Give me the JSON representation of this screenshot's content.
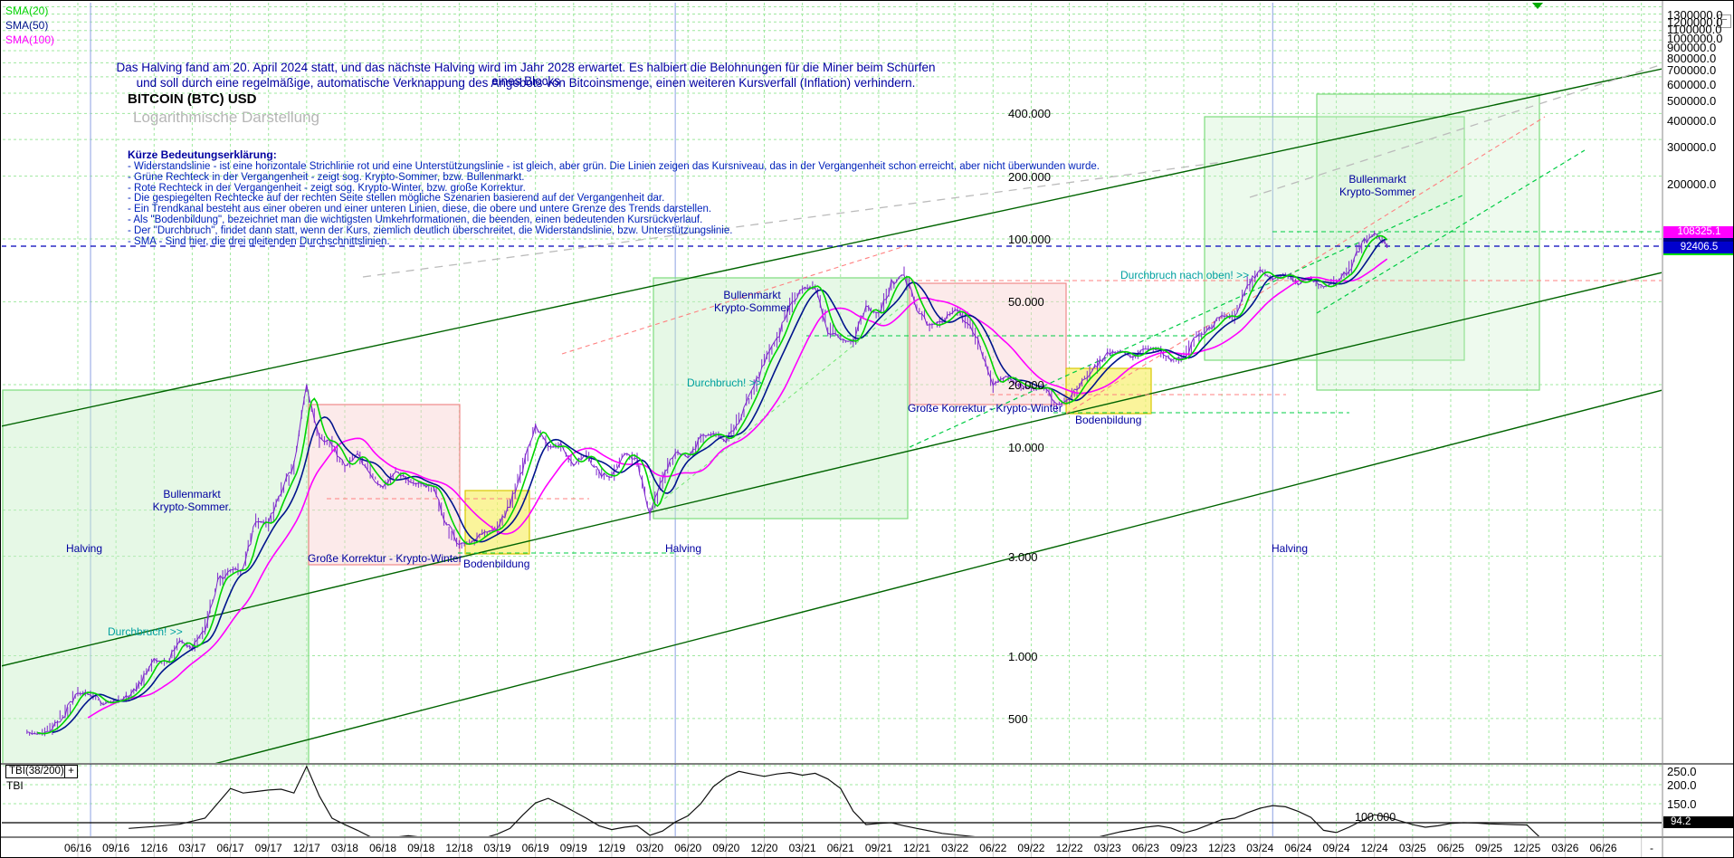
{
  "legend": {
    "sma20": "SMA(20)",
    "sma50": "SMA(50)",
    "sma100": "SMA(100)"
  },
  "header": {
    "info_line1": "Das Halving fand am 20. April 2024 statt, und das nächste Halving wird im Jahr 2028 erwartet. Es halbiert die Belohnungen für die Miner beim Schürfen eines Blocks",
    "info_line2": "und soll durch eine regelmäßige, automatische Verknappung des Angebots von Bitcoinsmenge, einen weiteren Kursverfall (Inflation) verhindern.",
    "title": "BITCOIN (BTC) USD",
    "subtitle": "Logarithmische Darstellung"
  },
  "explanation": {
    "heading": "Kürze Bedeutungserklärung:",
    "bullets": [
      "- Widerstandslinie - ist eine horizontale Strichlinie rot und eine Unterstützungslinie - ist gleich, aber grün. Die Linien zeigen das Kursniveau, das in der Vergangenheit schon erreicht, aber nicht überwunden wurde.",
      "- Grüne Rechteck in der Vergangenheit - zeigt sog. Krypto-Sommer, bzw. Bullenmarkt.",
      "- Rote Rechteck in der Vergangenheit - zeigt sog. Krypto-Winter, bzw. große Korrektur.",
      "- Die gespiegelten Rechtecke auf der rechten Seite stellen mögliche Szenarien basierend auf der Vergangenheit dar.",
      "- Ein Trendkanal besteht aus einer oberen und einer unteren Linien, diese, die obere und untere Grenze des Trends darstellen.",
      "- Als \"Bodenbildung\", bezeichnet man die wichtigsten Umkehrformationen, die beenden, einen bedeutenden Kursrückverlauf.",
      "- Der \"Durchbruch\", findet dann statt, wenn der Kurs, ziemlich deutlich überschreitet, die Widerstandslinie, bzw. Unterstützungslinie.",
      "- SMA - Sind hier, die drei gleitenden Durchschnittslinien."
    ]
  },
  "annotations": {
    "bull_left": "Bullenmarkt\nKrypto-Sommer.",
    "bull_mid": "Bullenmarkt\nKrypto-Sommer",
    "bull_right": "Bullenmarkt\nKrypto-Sommer",
    "halving": "Halving",
    "korrektur": "Große Korrektur - Krypto-Winter",
    "boden": "Bodenbildung",
    "durchbruch": "Durchbruch! >>",
    "durchbruch_oben": "Durchbruch nach oben! >>"
  },
  "tbi": {
    "box_label": "TBI(38/200)",
    "label": "TBI",
    "level_label": "100.000",
    "marker": "94.2"
  },
  "icons": {
    "collapse_glyph": "−",
    "plus_glyph": "+"
  },
  "colors": {
    "sma20": "#00d400",
    "sma50": "#00148c",
    "sma100": "#ff00ff",
    "candle": "#7d26cd",
    "grid": "#9fe89f",
    "bull_box_stroke": "#7ddd7d",
    "bull_box_fill": "#c8f0c8",
    "bear_box_stroke": "#f08a8a",
    "bear_box_fill": "#f8d0d0",
    "bottom_box_stroke": "#d8c800",
    "bottom_box_fill": "#f8f070",
    "trend": "#006400",
    "mirror_gray": "#bbbbbb",
    "resistance": "#ff8080",
    "support": "#00cc44",
    "halving_line": "#9fb0e8",
    "current_price_line": "#0000bb",
    "marker_magenta_bg": "#ff00ff",
    "marker_blue_bg": "#0000cd",
    "tbi_line": "#111111"
  },
  "chart_data": {
    "type": "line",
    "title": "BITCOIN (BTC) USD",
    "yscale": "log",
    "ylabel": "USD",
    "x_range": [
      "06/16",
      "06/26"
    ],
    "y_range_usd": [
      400,
      1400000
    ],
    "x_end_dash": "-",
    "x_ticks": [
      "06/16",
      "09/16",
      "12/16",
      "03/17",
      "06/17",
      "09/17",
      "12/17",
      "03/18",
      "06/18",
      "09/18",
      "12/18",
      "03/19",
      "06/19",
      "09/19",
      "12/19",
      "03/20",
      "06/20",
      "09/20",
      "12/20",
      "03/21",
      "06/21",
      "09/21",
      "12/21",
      "03/22",
      "06/22",
      "09/22",
      "12/22",
      "03/23",
      "06/23",
      "09/23",
      "12/23",
      "03/24",
      "06/24",
      "09/24",
      "12/24",
      "03/25",
      "06/25",
      "09/25",
      "12/25",
      "03/26",
      "06/26"
    ],
    "y_axis_labels_top": [
      {
        "label": "1300000.0",
        "value": 1300000
      },
      {
        "label": "1200000.0",
        "value": 1200000
      },
      {
        "label": "1100000.0",
        "value": 1100000
      },
      {
        "label": "1000000.0",
        "value": 1000000
      },
      {
        "label": "900000.0",
        "value": 900000
      },
      {
        "label": "800000.0",
        "value": 800000
      },
      {
        "label": "700000.0",
        "value": 700000
      },
      {
        "label": "600000.0",
        "value": 600000
      },
      {
        "label": "500000.0",
        "value": 500000
      },
      {
        "label": "400000.0",
        "value": 400000
      },
      {
        "label": "300000.0",
        "value": 300000
      },
      {
        "label": "200000.0",
        "value": 200000
      }
    ],
    "y_axis_labels_inchart": [
      {
        "label": "400.000",
        "value": 400000
      },
      {
        "label": "200.000",
        "value": 200000
      },
      {
        "label": "100.000",
        "value": 100000
      },
      {
        "label": "50.000",
        "value": 50000
      },
      {
        "label": "20.000",
        "value": 20000
      },
      {
        "label": "10.000",
        "value": 10000
      },
      {
        "label": "3.000",
        "value": 3000
      },
      {
        "label": "1.000",
        "value": 1000
      },
      {
        "label": "500",
        "value": 500
      }
    ],
    "price_markers": {
      "magenta": "108325.1",
      "blue": "92406.5"
    },
    "halving_months": [
      "07/16",
      "05/20",
      "04/24"
    ],
    "btc_monthly": [
      [
        "02/16",
        430
      ],
      [
        "03/16",
        420
      ],
      [
        "04/16",
        450
      ],
      [
        "05/16",
        530
      ],
      [
        "06/16",
        670
      ],
      [
        "07/16",
        660
      ],
      [
        "08/16",
        590
      ],
      [
        "09/16",
        608
      ],
      [
        "10/16",
        640
      ],
      [
        "11/16",
        745
      ],
      [
        "12/16",
        960
      ],
      [
        "01/17",
        920
      ],
      [
        "02/17",
        1180
      ],
      [
        "03/17",
        1080
      ],
      [
        "04/17",
        1350
      ],
      [
        "05/17",
        2300
      ],
      [
        "06/17",
        2550
      ],
      [
        "07/17",
        2600
      ],
      [
        "08/17",
        4400
      ],
      [
        "09/17",
        4300
      ],
      [
        "10/17",
        6100
      ],
      [
        "11/17",
        8200
      ],
      [
        "12/17",
        19500
      ],
      [
        "01/18",
        11000
      ],
      [
        "02/18",
        10500
      ],
      [
        "03/18",
        8000
      ],
      [
        "04/18",
        9300
      ],
      [
        "05/18",
        7500
      ],
      [
        "06/18",
        6400
      ],
      [
        "07/18",
        7700
      ],
      [
        "08/18",
        7000
      ],
      [
        "09/18",
        6600
      ],
      [
        "10/18",
        6400
      ],
      [
        "11/18",
        4300
      ],
      [
        "12/18",
        3400
      ],
      [
        "01/19",
        3500
      ],
      [
        "02/19",
        3900
      ],
      [
        "03/19",
        4100
      ],
      [
        "04/19",
        5300
      ],
      [
        "05/19",
        8000
      ],
      [
        "06/19",
        12500
      ],
      [
        "07/19",
        10000
      ],
      [
        "08/19",
        10200
      ],
      [
        "09/19",
        8300
      ],
      [
        "10/19",
        9300
      ],
      [
        "11/19",
        7500
      ],
      [
        "12/19",
        7200
      ],
      [
        "01/20",
        9400
      ],
      [
        "02/20",
        8600
      ],
      [
        "03/20",
        4800
      ],
      [
        "04/20",
        7000
      ],
      [
        "05/20",
        9500
      ],
      [
        "06/20",
        9100
      ],
      [
        "07/20",
        11000
      ],
      [
        "08/20",
        11700
      ],
      [
        "09/20",
        10800
      ],
      [
        "10/20",
        13500
      ],
      [
        "11/20",
        18000
      ],
      [
        "12/20",
        26000
      ],
      [
        "01/21",
        33000
      ],
      [
        "02/21",
        48000
      ],
      [
        "03/21",
        58000
      ],
      [
        "04/21",
        60000
      ],
      [
        "05/21",
        37000
      ],
      [
        "06/21",
        33000
      ],
      [
        "07/21",
        32000
      ],
      [
        "08/21",
        47000
      ],
      [
        "09/21",
        43000
      ],
      [
        "10/21",
        61000
      ],
      [
        "11/21",
        68000
      ],
      [
        "12/21",
        47000
      ],
      [
        "01/22",
        38000
      ],
      [
        "02/22",
        40000
      ],
      [
        "03/22",
        46000
      ],
      [
        "04/22",
        40000
      ],
      [
        "05/22",
        30000
      ],
      [
        "06/22",
        20000
      ],
      [
        "07/22",
        22000
      ],
      [
        "08/22",
        20000
      ],
      [
        "09/22",
        19000
      ],
      [
        "10/22",
        19500
      ],
      [
        "11/22",
        16000
      ],
      [
        "12/22",
        16800
      ],
      [
        "01/23",
        21000
      ],
      [
        "02/23",
        24000
      ],
      [
        "03/23",
        28000
      ],
      [
        "04/23",
        29000
      ],
      [
        "05/23",
        27000
      ],
      [
        "06/23",
        30000
      ],
      [
        "07/23",
        29500
      ],
      [
        "08/23",
        26000
      ],
      [
        "09/23",
        27000
      ],
      [
        "10/23",
        34000
      ],
      [
        "11/23",
        37000
      ],
      [
        "12/23",
        43000
      ],
      [
        "01/24",
        42000
      ],
      [
        "02/24",
        60000
      ],
      [
        "03/24",
        71000
      ],
      [
        "04/24",
        64000
      ],
      [
        "05/24",
        68000
      ],
      [
        "06/24",
        61000
      ],
      [
        "07/24",
        65000
      ],
      [
        "08/24",
        58000
      ],
      [
        "09/24",
        63000
      ],
      [
        "10/24",
        70000
      ],
      [
        "11/24",
        95000
      ],
      [
        "12/24",
        106000
      ],
      [
        "01/25",
        92400
      ]
    ],
    "tbi_axis_labels": [
      {
        "label": "250.0",
        "value": 250
      },
      {
        "label": "200.0",
        "value": 200
      },
      {
        "label": "150.0",
        "value": 150
      }
    ],
    "tbi_monthly": [
      [
        "10/16",
        85
      ],
      [
        "12/16",
        90
      ],
      [
        "02/17",
        96
      ],
      [
        "04/17",
        112
      ],
      [
        "06/17",
        190
      ],
      [
        "07/17",
        178
      ],
      [
        "08/17",
        182
      ],
      [
        "09/17",
        186
      ],
      [
        "10/17",
        188
      ],
      [
        "11/17",
        178
      ],
      [
        "12/17",
        248
      ],
      [
        "01/18",
        170
      ],
      [
        "02/18",
        112
      ],
      [
        "03/18",
        95
      ],
      [
        "04/18",
        80
      ],
      [
        "05/18",
        63
      ],
      [
        "06/18",
        60
      ],
      [
        "07/18",
        62
      ],
      [
        "08/18",
        66
      ],
      [
        "09/18",
        62
      ],
      [
        "10/18",
        60
      ],
      [
        "11/18",
        55
      ],
      [
        "12/18",
        48
      ],
      [
        "01/19",
        52
      ],
      [
        "02/19",
        60
      ],
      [
        "03/19",
        70
      ],
      [
        "04/19",
        85
      ],
      [
        "05/19",
        120
      ],
      [
        "06/19",
        152
      ],
      [
        "07/19",
        164
      ],
      [
        "08/19",
        148
      ],
      [
        "09/19",
        130
      ],
      [
        "10/19",
        112
      ],
      [
        "11/19",
        92
      ],
      [
        "12/19",
        82
      ],
      [
        "01/20",
        88
      ],
      [
        "02/20",
        92
      ],
      [
        "03/20",
        67
      ],
      [
        "04/20",
        78
      ],
      [
        "05/20",
        102
      ],
      [
        "06/20",
        118
      ],
      [
        "07/20",
        150
      ],
      [
        "08/20",
        195
      ],
      [
        "09/20",
        220
      ],
      [
        "10/20",
        235
      ],
      [
        "11/20",
        228
      ],
      [
        "12/20",
        222
      ],
      [
        "01/21",
        228
      ],
      [
        "02/21",
        232
      ],
      [
        "03/21",
        225
      ],
      [
        "04/21",
        230
      ],
      [
        "05/21",
        215
      ],
      [
        "06/21",
        190
      ],
      [
        "07/21",
        130
      ],
      [
        "08/21",
        95
      ],
      [
        "09/21",
        98
      ],
      [
        "10/21",
        100
      ],
      [
        "11/21",
        92
      ],
      [
        "12/21",
        85
      ],
      [
        "02/22",
        72
      ],
      [
        "04/22",
        65
      ],
      [
        "06/22",
        58
      ],
      [
        "08/22",
        52
      ],
      [
        "10/22",
        45
      ],
      [
        "11/22",
        40
      ],
      [
        "12/22",
        44
      ],
      [
        "01/23",
        52
      ],
      [
        "02/23",
        60
      ],
      [
        "03/23",
        68
      ],
      [
        "04/23",
        76
      ],
      [
        "05/23",
        82
      ],
      [
        "06/23",
        88
      ],
      [
        "07/23",
        92
      ],
      [
        "08/23",
        86
      ],
      [
        "09/23",
        73
      ],
      [
        "10/23",
        82
      ],
      [
        "11/23",
        95
      ],
      [
        "12/23",
        108
      ],
      [
        "01/24",
        112
      ],
      [
        "02/24",
        126
      ],
      [
        "03/24",
        138
      ],
      [
        "04/24",
        145
      ],
      [
        "05/24",
        142
      ],
      [
        "06/24",
        130
      ],
      [
        "07/24",
        114
      ],
      [
        "08/24",
        80
      ],
      [
        "09/24",
        74
      ],
      [
        "10/24",
        88
      ],
      [
        "11/24",
        105
      ],
      [
        "12/24",
        121
      ],
      [
        "01/25",
        115
      ],
      [
        "02/25",
        105
      ],
      [
        "03/25",
        95
      ],
      [
        "04/25",
        88
      ],
      [
        "05/25",
        92
      ],
      [
        "06/25",
        98
      ],
      [
        "07/25",
        100
      ],
      [
        "08/25",
        99
      ],
      [
        "09/25",
        97
      ],
      [
        "10/25",
        96
      ],
      [
        "11/25",
        95
      ],
      [
        "12/25",
        94
      ],
      [
        "01/26",
        62
      ]
    ]
  }
}
